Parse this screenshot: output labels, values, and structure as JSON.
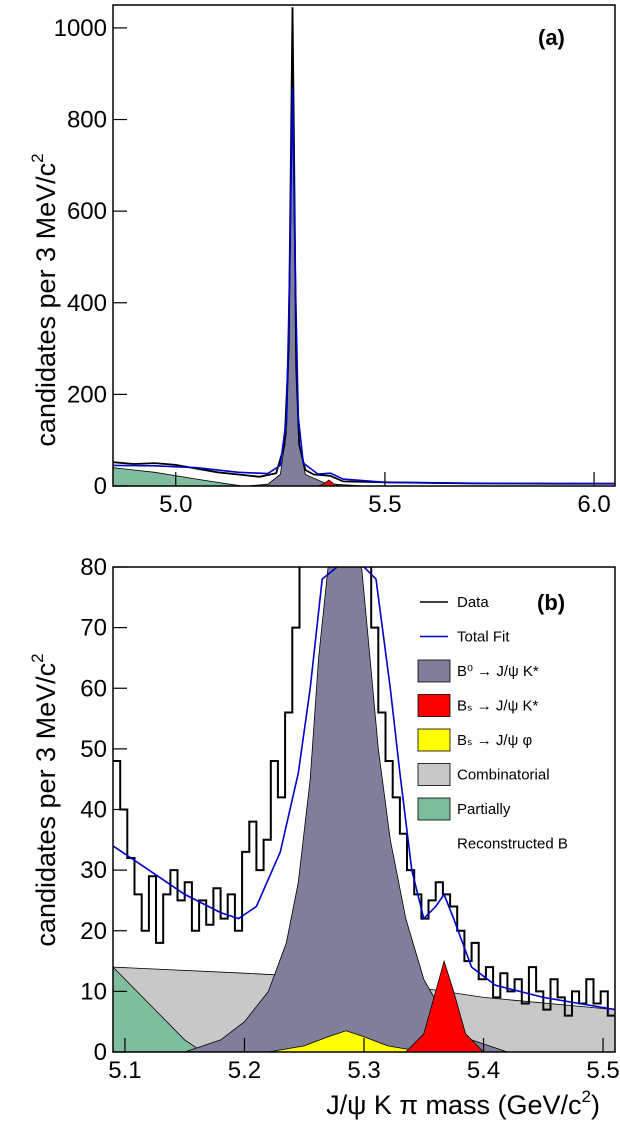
{
  "chart_data": [
    {
      "type": "line",
      "panel_label": "(a)",
      "ylabel": "candidates per 3 MeV/c",
      "ylabel_exp": "2",
      "xlim": [
        4.85,
        6.05
      ],
      "ylim": [
        0,
        1050
      ],
      "xticks": [
        "5.0",
        "5.5",
        "6.0"
      ],
      "yticks": [
        "0",
        "200",
        "400",
        "600",
        "800",
        "1000"
      ],
      "series": [
        {
          "type": "area",
          "color": "#7f7f9b",
          "points": [
            [
              5.17,
              0
            ],
            [
              5.22,
              4
            ],
            [
              5.25,
              25
            ],
            [
              5.265,
              120
            ],
            [
              5.27,
              280
            ],
            [
              5.275,
              600
            ],
            [
              5.279,
              860
            ],
            [
              5.283,
              600
            ],
            [
              5.288,
              280
            ],
            [
              5.295,
              90
            ],
            [
              5.31,
              25
            ],
            [
              5.36,
              5
            ],
            [
              5.45,
              0
            ]
          ]
        },
        {
          "type": "area",
          "color": "#7ebd9d",
          "points": [
            [
              4.85,
              40
            ],
            [
              4.95,
              30
            ],
            [
              5.05,
              15
            ],
            [
              5.12,
              5
            ],
            [
              5.16,
              0
            ]
          ]
        },
        {
          "type": "area",
          "color": "#ff0000",
          "points": [
            [
              5.34,
              0
            ],
            [
              5.355,
              5
            ],
            [
              5.366,
              13
            ],
            [
              5.377,
              5
            ],
            [
              5.39,
              0
            ]
          ]
        },
        {
          "type": "line",
          "color": "#000000",
          "name": "data",
          "points": [
            [
              4.85,
              52
            ],
            [
              4.9,
              48
            ],
            [
              4.95,
              50
            ],
            [
              5.0,
              46
            ],
            [
              5.05,
              38
            ],
            [
              5.1,
              30
            ],
            [
              5.15,
              25
            ],
            [
              5.2,
              20
            ],
            [
              5.24,
              28
            ],
            [
              5.26,
              90
            ],
            [
              5.27,
              300
            ],
            [
              5.275,
              700
            ],
            [
              5.279,
              1045
            ],
            [
              5.283,
              720
            ],
            [
              5.288,
              260
            ],
            [
              5.295,
              90
            ],
            [
              5.31,
              35
            ],
            [
              5.33,
              25
            ],
            [
              5.37,
              22
            ],
            [
              5.4,
              10
            ],
            [
              5.5,
              8
            ],
            [
              5.7,
              6
            ],
            [
              5.9,
              5
            ],
            [
              6.05,
              5
            ]
          ]
        },
        {
          "type": "line",
          "color": "#0000cc",
          "name": "fit",
          "points": [
            [
              4.85,
              45
            ],
            [
              4.95,
              44
            ],
            [
              5.05,
              40
            ],
            [
              5.15,
              30
            ],
            [
              5.22,
              27
            ],
            [
              5.25,
              45
            ],
            [
              5.265,
              150
            ],
            [
              5.272,
              450
            ],
            [
              5.279,
              870
            ],
            [
              5.286,
              450
            ],
            [
              5.293,
              150
            ],
            [
              5.305,
              50
            ],
            [
              5.34,
              26
            ],
            [
              5.37,
              28
            ],
            [
              5.4,
              15
            ],
            [
              5.5,
              8
            ],
            [
              5.7,
              6
            ],
            [
              6.05,
              5
            ]
          ]
        }
      ]
    },
    {
      "type": "line",
      "panel_label": "(b)",
      "xlabel": "J/ψ K π mass (GeV/c",
      "xlabel_exp": "2",
      "xlabel_end": ")",
      "ylabel": "candidates per 3 MeV/c",
      "ylabel_exp": "2",
      "xlim": [
        5.09,
        5.51
      ],
      "ylim": [
        0,
        80
      ],
      "xticks": [
        "5.1",
        "5.2",
        "5.3",
        "5.4",
        "5.5"
      ],
      "yticks": [
        "0",
        "10",
        "20",
        "30",
        "40",
        "50",
        "60",
        "70",
        "80"
      ],
      "legend_position": "top-right",
      "legend": [
        {
          "kind": "line",
          "color": "#000000",
          "label": "Data"
        },
        {
          "kind": "line",
          "color": "#0000cc",
          "label": "Total Fit"
        },
        {
          "kind": "box",
          "color": "#7f7f9b",
          "label": "B⁰ → J/ψ K*"
        },
        {
          "kind": "box",
          "color": "#ff0000",
          "label": "Bₛ → J/ψ K*"
        },
        {
          "kind": "box",
          "color": "#ffff00",
          "label": "Bₛ → J/ψ φ"
        },
        {
          "kind": "box",
          "color": "#c8c8c8",
          "label": "Combinatorial"
        },
        {
          "kind": "box",
          "color": "#7ebd9d",
          "label": "Partially"
        },
        {
          "kind": "text",
          "label": "Reconstructed B"
        }
      ],
      "series": [
        {
          "type": "area",
          "color": "#c8c8c8",
          "label": "Combinatorial",
          "points": [
            [
              5.09,
              14
            ],
            [
              5.2,
              13
            ],
            [
              5.3,
              12
            ],
            [
              5.4,
              9
            ],
            [
              5.51,
              7
            ]
          ]
        },
        {
          "type": "area",
          "color": "#7ebd9d",
          "label": "Partially Reconstructed B",
          "points": [
            [
              5.09,
              14
            ],
            [
              5.11,
              10
            ],
            [
              5.13,
              6
            ],
            [
              5.15,
              2
            ],
            [
              5.165,
              0
            ],
            [
              5.09,
              0
            ]
          ]
        },
        {
          "type": "area",
          "color": "#7f7f9b",
          "label": "B0",
          "points": [
            [
              5.15,
              0
            ],
            [
              5.18,
              2
            ],
            [
              5.2,
              5
            ],
            [
              5.22,
              10
            ],
            [
              5.235,
              18
            ],
            [
              5.245,
              28
            ],
            [
              5.255,
              45
            ],
            [
              5.262,
              65
            ],
            [
              5.27,
              80
            ],
            [
              5.288,
              80
            ],
            [
              5.298,
              80
            ],
            [
              5.305,
              65
            ],
            [
              5.312,
              50
            ],
            [
              5.322,
              35
            ],
            [
              5.335,
              22
            ],
            [
              5.35,
              12
            ],
            [
              5.37,
              5
            ],
            [
              5.39,
              2
            ],
            [
              5.42,
              0
            ]
          ]
        },
        {
          "type": "area",
          "color": "#ffff00",
          "label": "Bs phi",
          "points": [
            [
              5.22,
              0
            ],
            [
              5.25,
              1
            ],
            [
              5.27,
              2.5
            ],
            [
              5.285,
              3.5
            ],
            [
              5.3,
              2.5
            ],
            [
              5.32,
              1
            ],
            [
              5.35,
              0
            ]
          ]
        },
        {
          "type": "area",
          "color": "#ff0000",
          "label": "Bs Kstar",
          "points": [
            [
              5.335,
              0
            ],
            [
              5.35,
              3
            ],
            [
              5.36,
              10
            ],
            [
              5.367,
              15
            ],
            [
              5.375,
              10
            ],
            [
              5.385,
              3
            ],
            [
              5.4,
              0
            ]
          ]
        },
        {
          "type": "step",
          "color": "#000000",
          "label": "Data",
          "points": [
            [
              5.09,
              48
            ],
            [
              5.096,
              40
            ],
            [
              5.102,
              32
            ],
            [
              5.108,
              26
            ],
            [
              5.114,
              20
            ],
            [
              5.12,
              29
            ],
            [
              5.126,
              18
            ],
            [
              5.132,
              26
            ],
            [
              5.138,
              30
            ],
            [
              5.144,
              25
            ],
            [
              5.15,
              28
            ],
            [
              5.156,
              20
            ],
            [
              5.162,
              25
            ],
            [
              5.168,
              21
            ],
            [
              5.174,
              27
            ],
            [
              5.18,
              22
            ],
            [
              5.186,
              26
            ],
            [
              5.192,
              20
            ],
            [
              5.198,
              33
            ],
            [
              5.204,
              38
            ],
            [
              5.21,
              30
            ],
            [
              5.216,
              35
            ],
            [
              5.222,
              48
            ],
            [
              5.228,
              42
            ],
            [
              5.234,
              56
            ],
            [
              5.24,
              70
            ],
            [
              5.246,
              82
            ],
            [
              5.252,
              82
            ],
            [
              5.258,
              82
            ],
            [
              5.264,
              82
            ],
            [
              5.27,
              82
            ],
            [
              5.276,
              82
            ],
            [
              5.282,
              82
            ],
            [
              5.288,
              82
            ],
            [
              5.294,
              82
            ],
            [
              5.3,
              82
            ],
            [
              5.306,
              70
            ],
            [
              5.312,
              56
            ],
            [
              5.318,
              48
            ],
            [
              5.324,
              42
            ],
            [
              5.33,
              36
            ],
            [
              5.336,
              30
            ],
            [
              5.342,
              26
            ],
            [
              5.348,
              22
            ],
            [
              5.354,
              25
            ],
            [
              5.36,
              28
            ],
            [
              5.366,
              26
            ],
            [
              5.372,
              24
            ],
            [
              5.378,
              20
            ],
            [
              5.384,
              15
            ],
            [
              5.39,
              18
            ],
            [
              5.396,
              12
            ],
            [
              5.402,
              14
            ],
            [
              5.408,
              9
            ],
            [
              5.414,
              13
            ],
            [
              5.42,
              10
            ],
            [
              5.426,
              12
            ],
            [
              5.432,
              8
            ],
            [
              5.438,
              14
            ],
            [
              5.444,
              10
            ],
            [
              5.45,
              7
            ],
            [
              5.456,
              12
            ],
            [
              5.462,
              9
            ],
            [
              5.468,
              6
            ],
            [
              5.474,
              10
            ],
            [
              5.48,
              8
            ],
            [
              5.486,
              12
            ],
            [
              5.492,
              8
            ],
            [
              5.498,
              10
            ],
            [
              5.504,
              6
            ],
            [
              5.51,
              6
            ]
          ]
        },
        {
          "type": "line",
          "color": "#0000cc",
          "label": "Total Fit",
          "points": [
            [
              5.09,
              34
            ],
            [
              5.12,
              30
            ],
            [
              5.15,
              26
            ],
            [
              5.18,
              23
            ],
            [
              5.195,
              22
            ],
            [
              5.21,
              24
            ],
            [
              5.23,
              33
            ],
            [
              5.245,
              46
            ],
            [
              5.255,
              60
            ],
            [
              5.265,
              78
            ],
            [
              5.29,
              82
            ],
            [
              5.31,
              78
            ],
            [
              5.322,
              60
            ],
            [
              5.33,
              46
            ],
            [
              5.34,
              30
            ],
            [
              5.35,
              22
            ],
            [
              5.36,
              24
            ],
            [
              5.367,
              26
            ],
            [
              5.375,
              22
            ],
            [
              5.39,
              14
            ],
            [
              5.41,
              11
            ],
            [
              5.45,
              9
            ],
            [
              5.51,
              7
            ]
          ]
        }
      ]
    }
  ]
}
